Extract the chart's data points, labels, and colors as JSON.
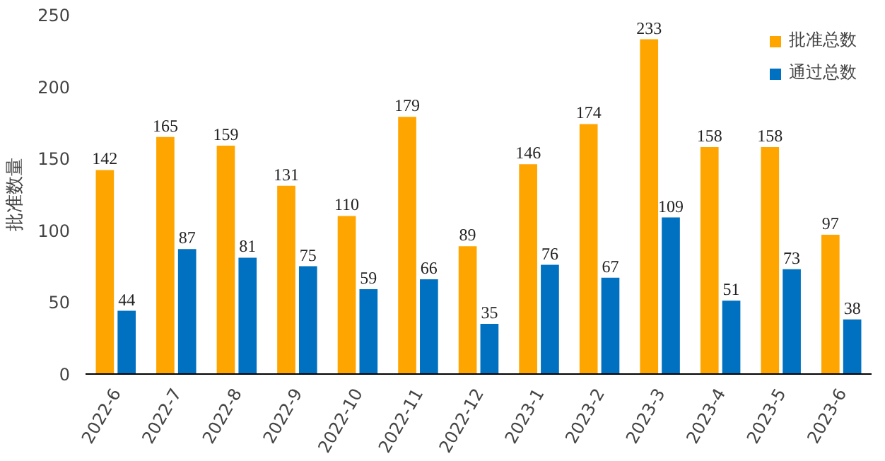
{
  "chart_data": {
    "type": "bar",
    "ylabel": "批准数量",
    "categories": [
      "2022-6",
      "2022-7",
      "2022-8",
      "2022-9",
      "2022-10",
      "2022-11",
      "2022-12",
      "2023-1",
      "2023-2",
      "2023-3",
      "2023-4",
      "2023-5",
      "2023-6"
    ],
    "series": [
      {
        "name": "批准总数",
        "color": "#ffa500",
        "values": [
          142,
          165,
          159,
          131,
          110,
          179,
          89,
          146,
          174,
          233,
          158,
          158,
          97
        ]
      },
      {
        "name": "通过总数",
        "color": "#0070c0",
        "values": [
          44,
          87,
          81,
          75,
          59,
          66,
          35,
          76,
          67,
          109,
          51,
          73,
          38
        ]
      }
    ],
    "ylim": [
      0,
      250
    ],
    "yticks": [
      0,
      50,
      100,
      150,
      200,
      250
    ],
    "grid": false,
    "legend": "top right",
    "data_labels": true
  }
}
